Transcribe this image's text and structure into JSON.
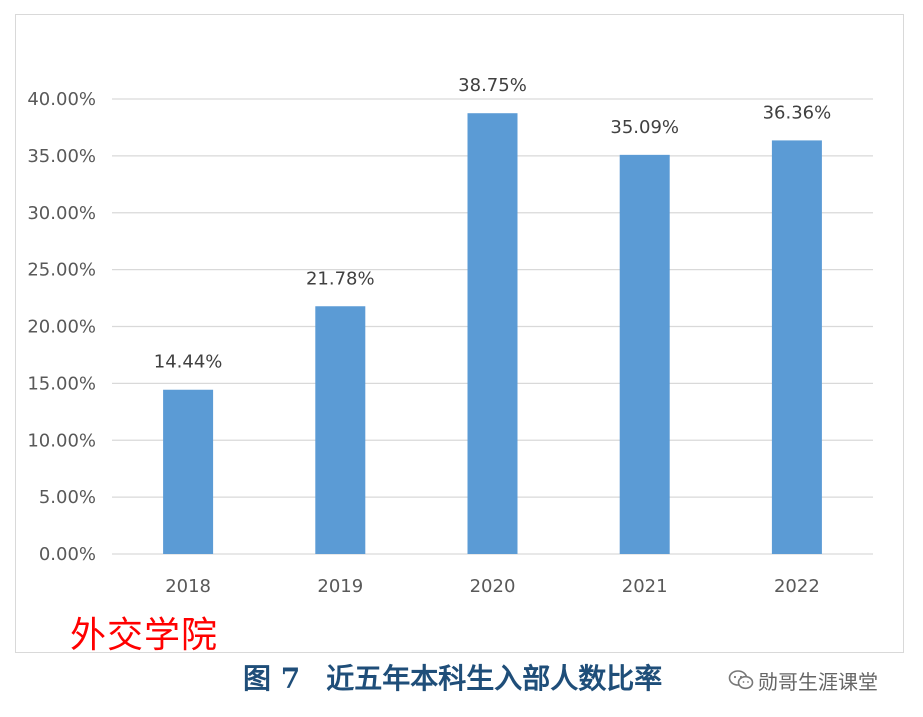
{
  "chart_data": {
    "type": "bar",
    "categories": [
      "2018",
      "2019",
      "2020",
      "2021",
      "2022"
    ],
    "values": [
      14.44,
      21.78,
      38.75,
      35.09,
      36.36
    ],
    "data_labels": [
      "14.44%",
      "21.78%",
      "38.75%",
      "35.09%",
      "36.36%"
    ],
    "ylim": [
      0,
      40
    ],
    "yticks": [
      0,
      5,
      10,
      15,
      20,
      25,
      30,
      35,
      40
    ],
    "ytick_labels": [
      "0.00%",
      "5.00%",
      "10.00%",
      "15.00%",
      "20.00%",
      "25.00%",
      "30.00%",
      "35.00%",
      "40.00%"
    ],
    "grid": true,
    "bar_color": "#5b9bd5",
    "grid_color": "#d9d9d9"
  },
  "caption": {
    "figure_no": "图 7",
    "title": "近五年本科生入部人数比率"
  },
  "overlay_label": "外交学院",
  "watermark": {
    "icon": "wechat-icon",
    "text": "勋哥生涯课堂"
  }
}
